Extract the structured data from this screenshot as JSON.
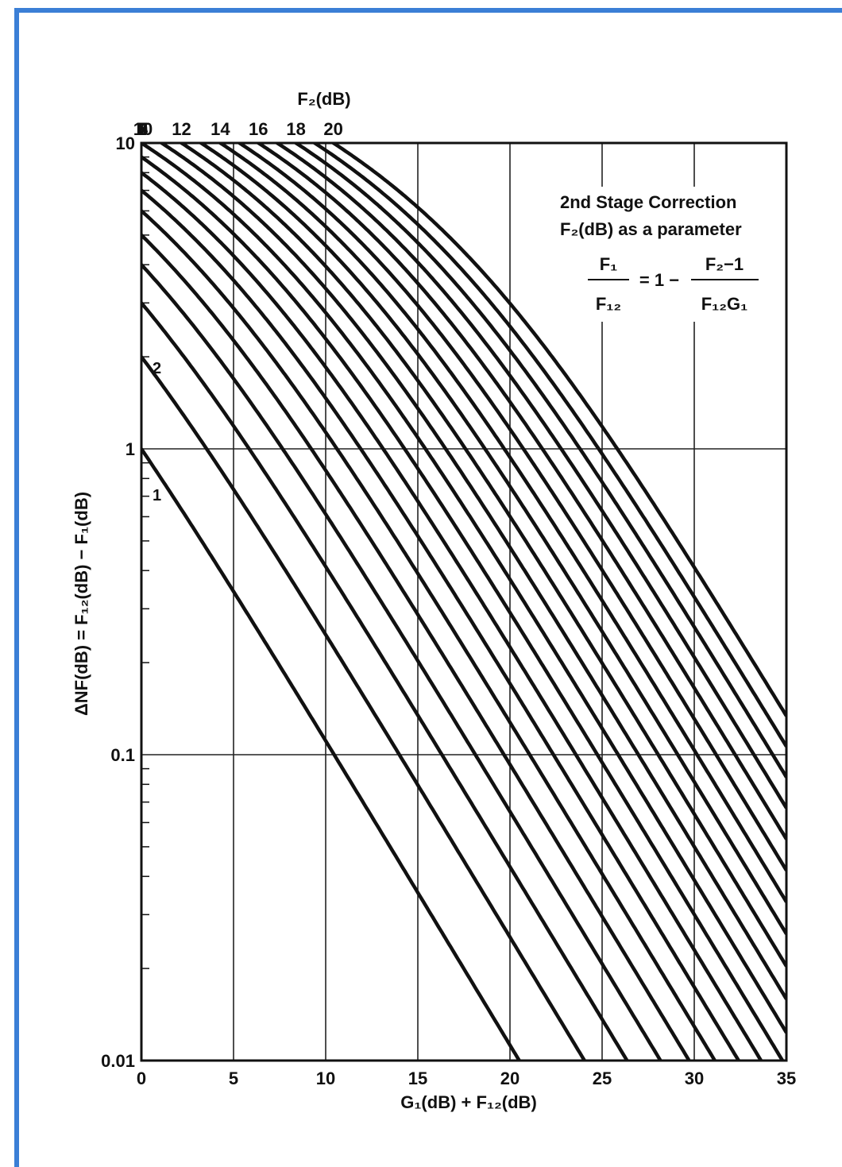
{
  "colors": {
    "frame": "#3b7fd6",
    "ink": "#111111",
    "background": "#ffffff"
  },
  "chart_data": {
    "type": "line",
    "top_axis_title": "F₂(dB)",
    "xlabel": "G₁(dB) + F₁₂(dB)",
    "ylabel": "ΔNF(dB) = F₁₂(dB) − F₁(dB)",
    "annotation": {
      "line1": "2nd Stage Correction",
      "line2": "F₂(dB) as a parameter",
      "formula": {
        "lhs_num": "F₁",
        "lhs_den": "F₁₂",
        "middle": "= 1 −",
        "rhs_num": "F₂−1",
        "rhs_den": "F₁₂G₁"
      }
    },
    "x_range": [
      0,
      35
    ],
    "y_range": [
      0.01,
      10
    ],
    "y_scale": "log",
    "x_ticks": [
      0,
      5,
      10,
      15,
      20,
      25,
      30,
      35
    ],
    "x_tick_labels": [
      "0",
      "5",
      "10",
      "15",
      "20",
      "25",
      "30",
      "35"
    ],
    "y_ticks": [
      0.01,
      0.1,
      1,
      10
    ],
    "y_tick_labels": [
      "0.01",
      "0.1",
      "1",
      "10"
    ],
    "grid": {
      "vertical_x": [
        5,
        10,
        15,
        20,
        25,
        30
      ],
      "horizontal_y": [
        0.1,
        1
      ]
    },
    "top_axis_labels": [
      "3",
      "4",
      "5",
      "6",
      "7",
      "8",
      "9",
      "10",
      "12",
      "14",
      "16",
      "18",
      "20"
    ],
    "curve_labels": [
      "2",
      "1"
    ],
    "series_F2_dB": [
      1,
      2,
      3,
      4,
      5,
      6,
      7,
      8,
      9,
      10,
      11,
      12,
      13,
      14,
      15,
      16,
      17,
      18,
      19,
      20
    ]
  }
}
